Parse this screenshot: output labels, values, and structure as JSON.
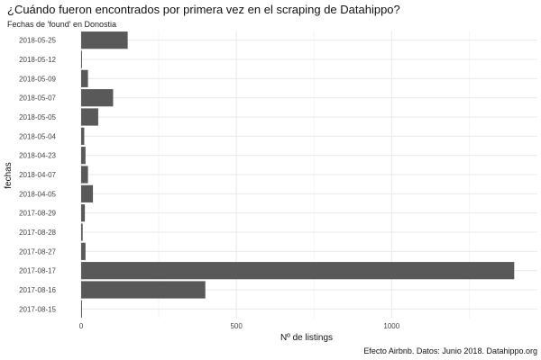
{
  "chart_data": {
    "type": "bar",
    "orientation": "horizontal",
    "title": "¿Cuándo fueron encontrados por primera vez en el scraping de Datahippo?",
    "subtitle": "Fechas de 'found' en Donostia",
    "caption": "Efecto Airbnb. Datos: Junio 2018. Datahippo.org",
    "xlabel": "Nº de listings",
    "ylabel": "fechas",
    "xlim": [
      0,
      1400
    ],
    "xticks": [
      0,
      500,
      1000
    ],
    "grid": true,
    "bar_color": "#595959",
    "categories": [
      "2018-05-25",
      "2018-05-12",
      "2018-05-09",
      "2018-05-07",
      "2018-05-05",
      "2018-05-04",
      "2018-04-23",
      "2018-04-07",
      "2018-04-05",
      "2017-08-29",
      "2017-08-28",
      "2017-08-27",
      "2017-08-17",
      "2017-08-16",
      "2017-08-15"
    ],
    "values": [
      150,
      2,
      22,
      103,
      55,
      10,
      14,
      22,
      38,
      12,
      5,
      14,
      1395,
      400,
      2
    ]
  }
}
